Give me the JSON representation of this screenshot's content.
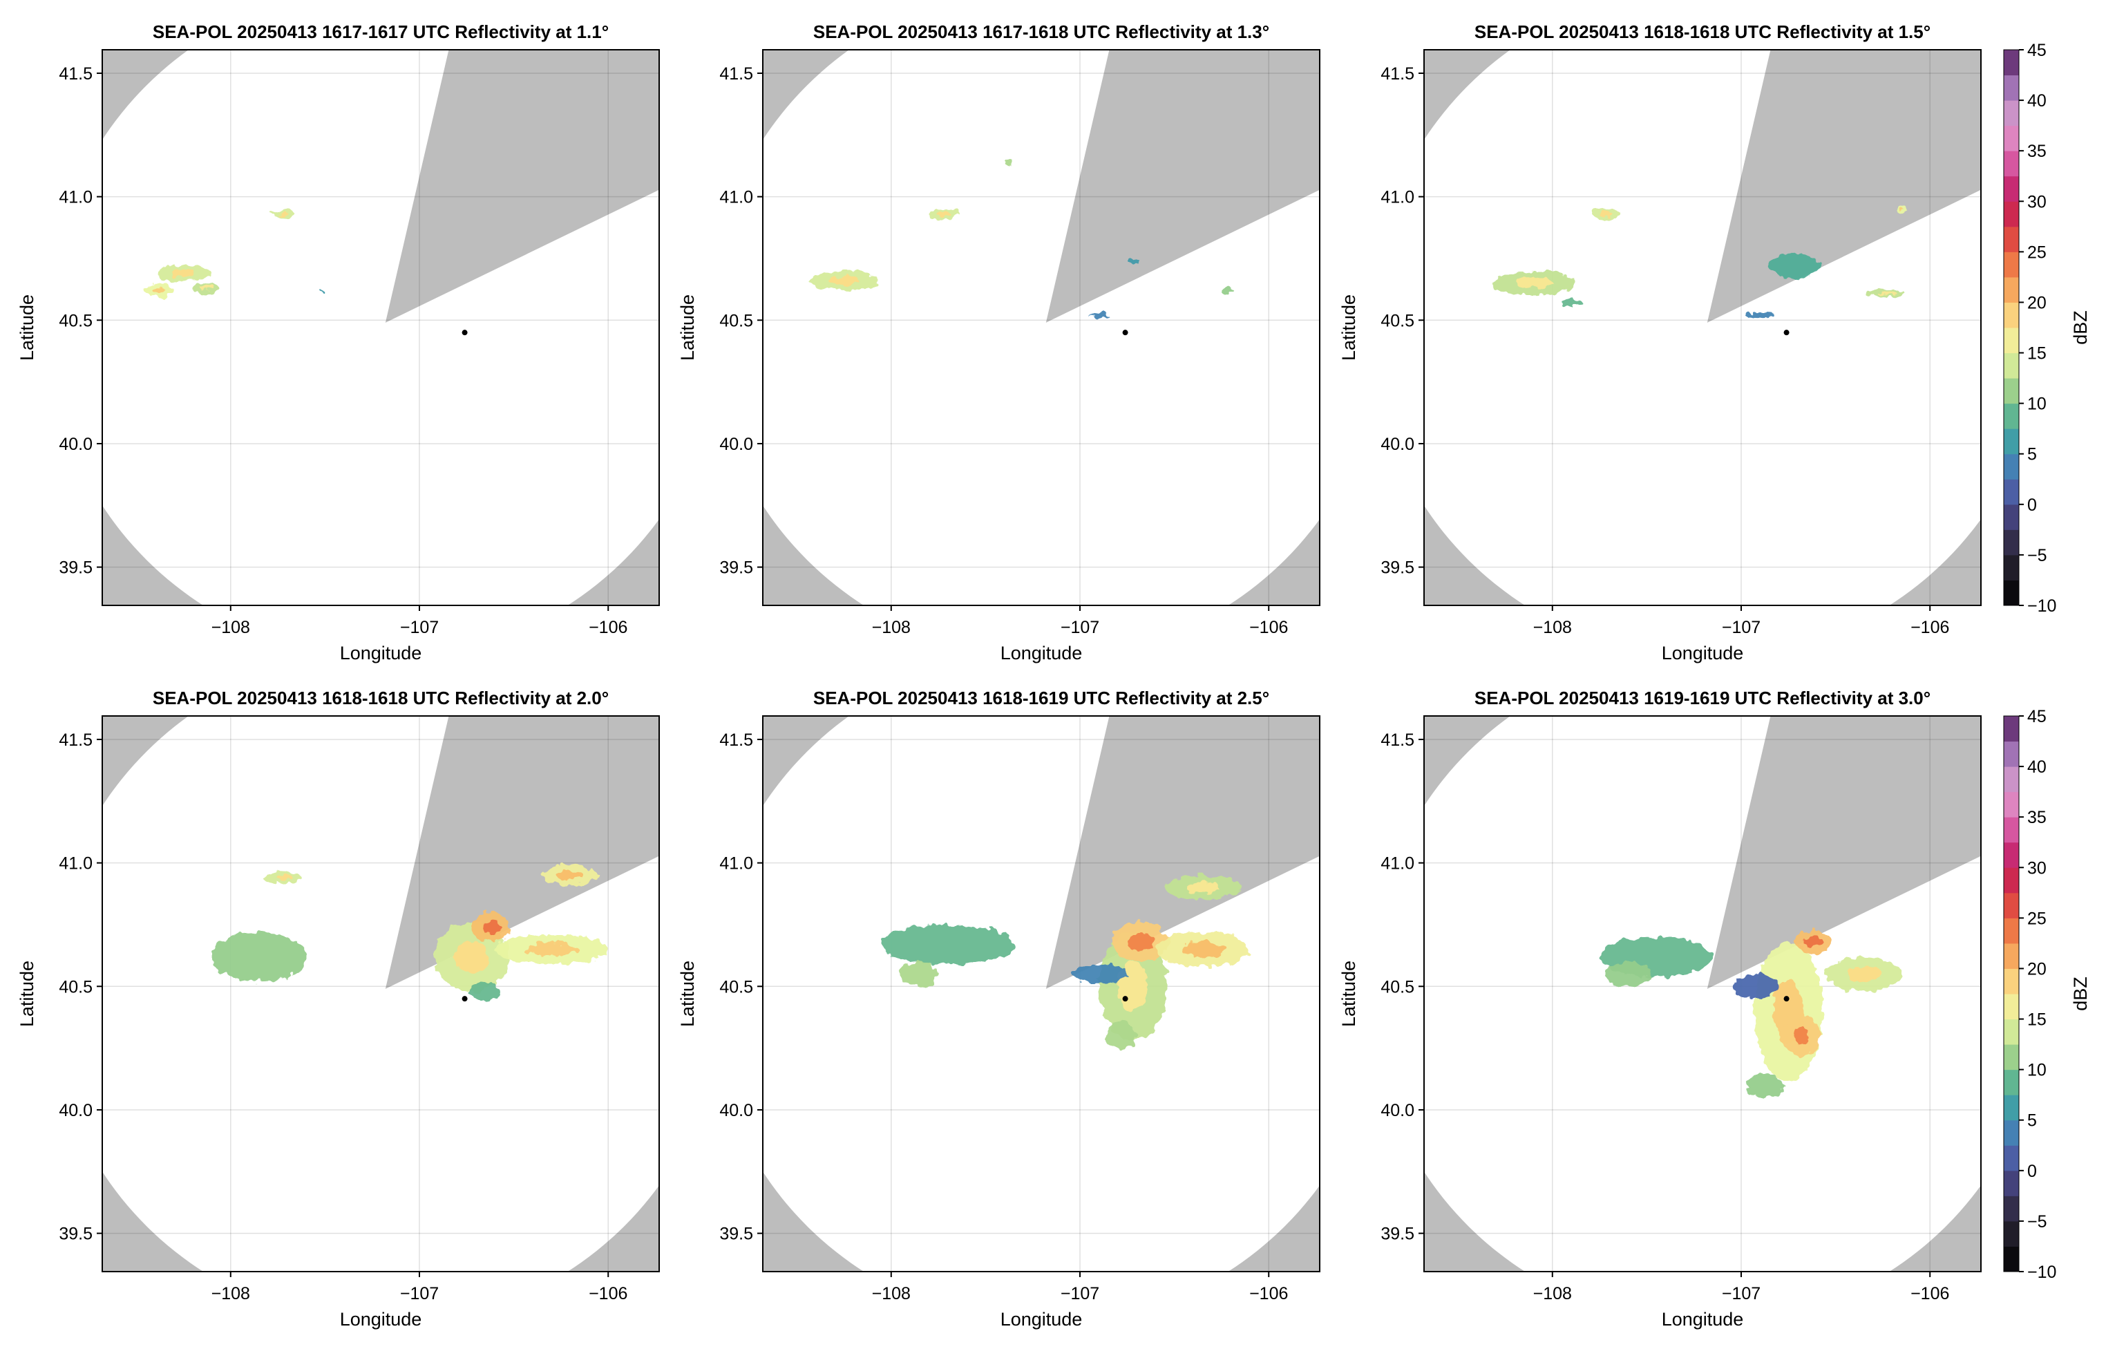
{
  "chart_data": {
    "type": "radar-ppi-grid",
    "layout": {
      "rows": 2,
      "cols": 3
    },
    "xlabel": "Longitude",
    "ylabel": "Latitude",
    "xlim": [
      -108.68,
      -105.73
    ],
    "ylim": [
      39.345,
      41.595
    ],
    "xticks": [
      -108,
      -107,
      -106
    ],
    "yticks": [
      39.5,
      40.0,
      40.5,
      41.0,
      41.5
    ],
    "xtick_labels": [
      "−108",
      "−107",
      "−106"
    ],
    "ytick_labels": [
      "39.5",
      "40.0",
      "40.5",
      "41.0",
      "41.5"
    ],
    "grid": true,
    "radar": {
      "lon": -107.18,
      "lat": 40.49,
      "range_deg": 1.36,
      "blocked_sector_deg": [
        13,
        64
      ],
      "outside_color": "#bdbdbd",
      "coverage_color": "#ffffff"
    },
    "marker": {
      "lon": -106.76,
      "lat": 40.45,
      "color": "#000000"
    },
    "colorbar": {
      "label": "dBZ",
      "range": [
        -10,
        45
      ],
      "ticks": [
        -10,
        -5,
        0,
        5,
        10,
        15,
        20,
        25,
        30,
        35,
        40,
        45
      ],
      "tick_labels": [
        "−10",
        "−5",
        "0",
        "5",
        "10",
        "15",
        "20",
        "25",
        "30",
        "35",
        "40",
        "45"
      ],
      "step": 2.5,
      "stops": [
        [
          -10,
          "#000000"
        ],
        [
          -5,
          "#2b2636"
        ],
        [
          -2.5,
          "#3a3560"
        ],
        [
          0,
          "#4e4e96"
        ],
        [
          2.5,
          "#4a6fb4"
        ],
        [
          5,
          "#3f93b4"
        ],
        [
          7.5,
          "#43a89a"
        ],
        [
          10,
          "#7fc38a"
        ],
        [
          12.5,
          "#b8dd8e"
        ],
        [
          15,
          "#e9f5a2"
        ],
        [
          17.5,
          "#fbe48f"
        ],
        [
          20,
          "#f8bf6c"
        ],
        [
          22.5,
          "#f39150"
        ],
        [
          25,
          "#e8603e"
        ],
        [
          27.5,
          "#d73845"
        ],
        [
          30,
          "#c2195a"
        ],
        [
          32.5,
          "#cc3d8c"
        ],
        [
          35,
          "#df70b4"
        ],
        [
          37.5,
          "#dd9acc"
        ],
        [
          40,
          "#b88bc4"
        ],
        [
          42.5,
          "#8a5aa5"
        ],
        [
          45,
          "#4f1a52"
        ]
      ]
    },
    "panels": [
      {
        "title": "SEA-POL 20250413 1617-1617 UTC Reflectivity at 1.1°",
        "elevation_deg": 1.1,
        "show_colorbar": false,
        "echoes": [
          {
            "lon": -108.25,
            "lat": 40.69,
            "rx": 0.14,
            "ry": 0.035,
            "dbz": 14
          },
          {
            "lon": -108.38,
            "lat": 40.62,
            "rx": 0.08,
            "ry": 0.03,
            "dbz": 15
          },
          {
            "lon": -108.13,
            "lat": 40.63,
            "rx": 0.08,
            "ry": 0.02,
            "dbz": 13
          },
          {
            "lon": -107.72,
            "lat": 40.93,
            "rx": 0.06,
            "ry": 0.012,
            "dbz": 14
          },
          {
            "lon": -107.51,
            "lat": 40.62,
            "rx": 0.01,
            "ry": 0.006,
            "dbz": 6
          }
        ]
      },
      {
        "title": "SEA-POL 20250413 1617-1618 UTC Reflectivity at 1.3°",
        "elevation_deg": 1.3,
        "show_colorbar": false,
        "echoes": [
          {
            "lon": -108.25,
            "lat": 40.66,
            "rx": 0.18,
            "ry": 0.04,
            "dbz": 14
          },
          {
            "lon": -107.72,
            "lat": 40.93,
            "rx": 0.08,
            "ry": 0.02,
            "dbz": 14
          },
          {
            "lon": -107.38,
            "lat": 41.14,
            "rx": 0.02,
            "ry": 0.01,
            "dbz": 12
          },
          {
            "lon": -106.72,
            "lat": 40.74,
            "rx": 0.03,
            "ry": 0.01,
            "dbz": 6
          },
          {
            "lon": -106.22,
            "lat": 40.62,
            "rx": 0.03,
            "ry": 0.008,
            "dbz": 11
          },
          {
            "lon": -106.9,
            "lat": 40.52,
            "rx": 0.05,
            "ry": 0.008,
            "dbz": 4
          }
        ]
      },
      {
        "title": "SEA-POL 20250413 1618-1618 UTC Reflectivity at 1.5°",
        "elevation_deg": 1.5,
        "show_colorbar": true,
        "echoes": [
          {
            "lon": -108.1,
            "lat": 40.65,
            "rx": 0.22,
            "ry": 0.05,
            "dbz": 13
          },
          {
            "lon": -107.72,
            "lat": 40.93,
            "rx": 0.08,
            "ry": 0.02,
            "dbz": 14
          },
          {
            "lon": -107.9,
            "lat": 40.57,
            "rx": 0.05,
            "ry": 0.015,
            "dbz": 9
          },
          {
            "lon": -106.72,
            "lat": 40.72,
            "rx": 0.14,
            "ry": 0.05,
            "dbz": 8
          },
          {
            "lon": -106.23,
            "lat": 40.61,
            "rx": 0.1,
            "ry": 0.015,
            "dbz": 13
          },
          {
            "lon": -106.15,
            "lat": 40.95,
            "rx": 0.03,
            "ry": 0.015,
            "dbz": 15
          },
          {
            "lon": -106.9,
            "lat": 40.52,
            "rx": 0.08,
            "ry": 0.01,
            "dbz": 4
          }
        ]
      },
      {
        "title": "SEA-POL 20250413 1618-1618 UTC Reflectivity at 2.0°",
        "elevation_deg": 2.0,
        "show_colorbar": false,
        "echoes": [
          {
            "lon": -107.85,
            "lat": 40.62,
            "rx": 0.25,
            "ry": 0.1,
            "dbz": 11
          },
          {
            "lon": -107.72,
            "lat": 40.94,
            "rx": 0.1,
            "ry": 0.025,
            "dbz": 14
          },
          {
            "lon": -106.72,
            "lat": 40.62,
            "rx": 0.2,
            "ry": 0.14,
            "dbz": 14
          },
          {
            "lon": -106.62,
            "lat": 40.74,
            "rx": 0.1,
            "ry": 0.06,
            "dbz": 20
          },
          {
            "lon": -106.3,
            "lat": 40.65,
            "rx": 0.3,
            "ry": 0.06,
            "dbz": 15
          },
          {
            "lon": -106.2,
            "lat": 40.95,
            "rx": 0.15,
            "ry": 0.04,
            "dbz": 16
          },
          {
            "lon": -106.65,
            "lat": 40.48,
            "rx": 0.08,
            "ry": 0.04,
            "dbz": 9
          }
        ]
      },
      {
        "title": "SEA-POL 20250413 1618-1619 UTC Reflectivity at 2.5°",
        "elevation_deg": 2.5,
        "show_colorbar": false,
        "echoes": [
          {
            "lon": -107.7,
            "lat": 40.67,
            "rx": 0.35,
            "ry": 0.08,
            "dbz": 9
          },
          {
            "lon": -107.85,
            "lat": 40.55,
            "rx": 0.1,
            "ry": 0.05,
            "dbz": 12
          },
          {
            "lon": -106.72,
            "lat": 40.5,
            "rx": 0.18,
            "ry": 0.22,
            "dbz": 13
          },
          {
            "lon": -106.68,
            "lat": 40.68,
            "rx": 0.15,
            "ry": 0.08,
            "dbz": 19
          },
          {
            "lon": -106.78,
            "lat": 40.3,
            "rx": 0.08,
            "ry": 0.06,
            "dbz": 12
          },
          {
            "lon": -106.35,
            "lat": 40.65,
            "rx": 0.25,
            "ry": 0.07,
            "dbz": 16
          },
          {
            "lon": -106.9,
            "lat": 40.55,
            "rx": 0.15,
            "ry": 0.04,
            "dbz": 4
          },
          {
            "lon": -106.35,
            "lat": 40.9,
            "rx": 0.2,
            "ry": 0.05,
            "dbz": 13
          }
        ]
      },
      {
        "title": "SEA-POL 20250413 1619-1619 UTC Reflectivity at 3.0°",
        "elevation_deg": 3.0,
        "show_colorbar": true,
        "echoes": [
          {
            "lon": -107.45,
            "lat": 40.62,
            "rx": 0.3,
            "ry": 0.08,
            "dbz": 9
          },
          {
            "lon": -107.6,
            "lat": 40.55,
            "rx": 0.12,
            "ry": 0.05,
            "dbz": 11
          },
          {
            "lon": -106.75,
            "lat": 40.4,
            "rx": 0.18,
            "ry": 0.28,
            "dbz": 15
          },
          {
            "lon": -106.68,
            "lat": 40.3,
            "rx": 0.1,
            "ry": 0.08,
            "dbz": 19
          },
          {
            "lon": -106.88,
            "lat": 40.1,
            "rx": 0.1,
            "ry": 0.05,
            "dbz": 11
          },
          {
            "lon": -106.62,
            "lat": 40.68,
            "rx": 0.1,
            "ry": 0.05,
            "dbz": 20
          },
          {
            "lon": -106.92,
            "lat": 40.5,
            "rx": 0.12,
            "ry": 0.05,
            "dbz": 2
          },
          {
            "lon": -106.35,
            "lat": 40.55,
            "rx": 0.2,
            "ry": 0.07,
            "dbz": 14
          }
        ]
      }
    ]
  }
}
